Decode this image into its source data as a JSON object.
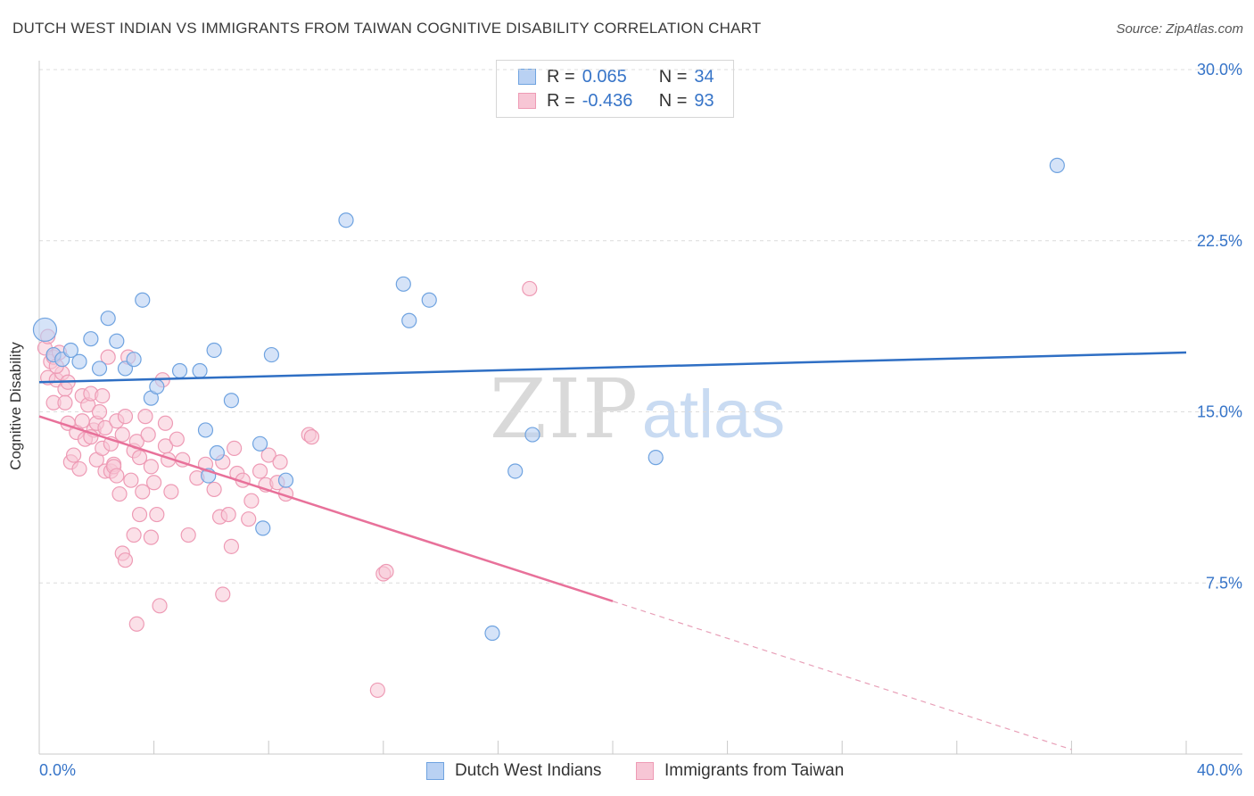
{
  "title": "DUTCH WEST INDIAN VS IMMIGRANTS FROM TAIWAN COGNITIVE DISABILITY CORRELATION CHART",
  "source": "Source: ZipAtlas.com",
  "legend": {
    "r_label": "R =",
    "n_label": "N =",
    "rows": [
      {
        "r": "0.065",
        "n": "34"
      },
      {
        "r": "-0.436",
        "n": "93"
      }
    ]
  },
  "watermark": {
    "zip": "ZIP",
    "atlas": "atlas"
  },
  "chart_data": {
    "type": "scatter",
    "title": "DUTCH WEST INDIAN VS IMMIGRANTS FROM TAIWAN COGNITIVE DISABILITY CORRELATION CHART",
    "xlabel": "",
    "ylabel": "Cognitive Disability",
    "xlim": [
      0,
      40
    ],
    "ylim": [
      0,
      30
    ],
    "x_tick_labels": [
      "0.0%",
      "40.0%"
    ],
    "y_ticks": [
      7.5,
      15.0,
      22.5,
      30.0
    ],
    "y_tick_labels": [
      "7.5%",
      "15.0%",
      "22.5%",
      "30.0%"
    ],
    "grid": true,
    "legend_position": "top-center",
    "series": [
      {
        "name": "Dutch West Indians",
        "color": "#6fa3e0",
        "fill": "#b9d1f3",
        "r": 0.065,
        "n": 34,
        "trend": {
          "x": [
            0,
            40
          ],
          "y": [
            16.3,
            17.6
          ]
        },
        "points": [
          [
            0.2,
            18.6
          ],
          [
            0.5,
            17.5
          ],
          [
            0.8,
            17.3
          ],
          [
            1.1,
            17.7
          ],
          [
            1.4,
            17.2
          ],
          [
            1.8,
            18.2
          ],
          [
            2.1,
            16.9
          ],
          [
            2.4,
            19.1
          ],
          [
            2.7,
            18.1
          ],
          [
            3.0,
            16.9
          ],
          [
            3.3,
            17.3
          ],
          [
            3.6,
            19.9
          ],
          [
            3.9,
            15.6
          ],
          [
            4.1,
            16.1
          ],
          [
            4.9,
            16.8
          ],
          [
            5.6,
            16.8
          ],
          [
            5.8,
            14.2
          ],
          [
            6.1,
            17.7
          ],
          [
            6.2,
            13.2
          ],
          [
            6.7,
            15.5
          ],
          [
            7.7,
            13.6
          ],
          [
            7.8,
            9.9
          ],
          [
            8.1,
            17.5
          ],
          [
            8.6,
            12.0
          ],
          [
            5.9,
            12.2
          ],
          [
            10.7,
            23.4
          ],
          [
            12.7,
            20.6
          ],
          [
            12.9,
            19.0
          ],
          [
            13.6,
            19.9
          ],
          [
            15.8,
            5.3
          ],
          [
            16.6,
            12.4
          ],
          [
            17.2,
            14.0
          ],
          [
            21.5,
            13.0
          ],
          [
            35.5,
            25.8
          ]
        ]
      },
      {
        "name": "Immigrants from Taiwan",
        "color": "#ee9bb5",
        "fill": "#f7c6d5",
        "r": -0.436,
        "n": 93,
        "trend": {
          "x": [
            0,
            20
          ],
          "y": [
            14.8,
            6.7
          ]
        },
        "trend_dashed": {
          "x": [
            20,
            36
          ],
          "y": [
            6.7,
            0.2
          ]
        },
        "points": [
          [
            0.2,
            17.8
          ],
          [
            0.3,
            16.5
          ],
          [
            0.4,
            17.2
          ],
          [
            0.5,
            17.4
          ],
          [
            0.6,
            16.4
          ],
          [
            0.7,
            17.6
          ],
          [
            0.8,
            16.7
          ],
          [
            0.9,
            16.0
          ],
          [
            1.0,
            16.3
          ],
          [
            0.5,
            15.4
          ],
          [
            0.9,
            15.4
          ],
          [
            1.0,
            14.5
          ],
          [
            1.1,
            12.8
          ],
          [
            1.2,
            13.1
          ],
          [
            1.3,
            14.1
          ],
          [
            1.4,
            12.5
          ],
          [
            1.5,
            15.7
          ],
          [
            1.5,
            14.6
          ],
          [
            1.6,
            13.8
          ],
          [
            1.7,
            15.3
          ],
          [
            1.8,
            15.8
          ],
          [
            1.9,
            14.2
          ],
          [
            2.0,
            14.5
          ],
          [
            2.0,
            12.9
          ],
          [
            2.1,
            15.0
          ],
          [
            2.2,
            15.7
          ],
          [
            2.2,
            13.4
          ],
          [
            2.3,
            12.4
          ],
          [
            2.3,
            14.3
          ],
          [
            2.4,
            17.4
          ],
          [
            2.5,
            12.4
          ],
          [
            2.6,
            12.7
          ],
          [
            2.6,
            12.6
          ],
          [
            2.7,
            14.6
          ],
          [
            2.7,
            12.2
          ],
          [
            2.8,
            11.4
          ],
          [
            2.9,
            8.8
          ],
          [
            2.9,
            14.0
          ],
          [
            3.0,
            8.5
          ],
          [
            3.0,
            14.8
          ],
          [
            3.1,
            17.4
          ],
          [
            3.2,
            12.0
          ],
          [
            3.3,
            9.6
          ],
          [
            3.3,
            13.3
          ],
          [
            3.4,
            13.7
          ],
          [
            3.4,
            5.7
          ],
          [
            3.5,
            10.5
          ],
          [
            3.5,
            13.0
          ],
          [
            3.6,
            11.5
          ],
          [
            3.7,
            14.8
          ],
          [
            3.8,
            14.0
          ],
          [
            3.9,
            9.5
          ],
          [
            4.0,
            11.9
          ],
          [
            4.1,
            10.5
          ],
          [
            4.2,
            6.5
          ],
          [
            4.3,
            16.4
          ],
          [
            4.4,
            14.5
          ],
          [
            4.4,
            13.5
          ],
          [
            4.5,
            12.9
          ],
          [
            4.6,
            11.5
          ],
          [
            4.8,
            13.8
          ],
          [
            5.0,
            12.9
          ],
          [
            5.2,
            9.6
          ],
          [
            5.5,
            12.1
          ],
          [
            5.8,
            12.7
          ],
          [
            6.1,
            11.6
          ],
          [
            6.3,
            10.4
          ],
          [
            6.4,
            12.8
          ],
          [
            6.4,
            7.0
          ],
          [
            6.6,
            10.5
          ],
          [
            6.7,
            9.1
          ],
          [
            6.8,
            13.4
          ],
          [
            6.9,
            12.3
          ],
          [
            7.1,
            12.0
          ],
          [
            7.3,
            10.3
          ],
          [
            7.4,
            11.1
          ],
          [
            7.7,
            12.4
          ],
          [
            7.9,
            11.8
          ],
          [
            8.0,
            13.1
          ],
          [
            8.3,
            11.9
          ],
          [
            8.4,
            12.8
          ],
          [
            8.6,
            11.4
          ],
          [
            9.4,
            14.0
          ],
          [
            9.5,
            13.9
          ],
          [
            11.8,
            2.8
          ],
          [
            12.0,
            7.9
          ],
          [
            12.1,
            8.0
          ],
          [
            17.1,
            20.4
          ],
          [
            0.3,
            18.3
          ],
          [
            0.6,
            17.0
          ],
          [
            1.8,
            13.9
          ],
          [
            2.5,
            13.6
          ],
          [
            3.9,
            12.6
          ]
        ]
      }
    ]
  }
}
